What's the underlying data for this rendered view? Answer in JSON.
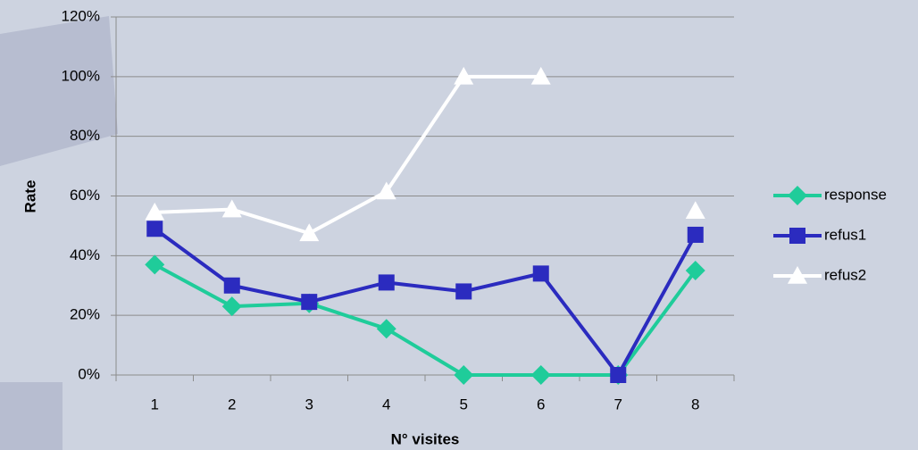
{
  "chart_data": {
    "type": "line",
    "xlabel": "N° visites",
    "ylabel": "Rate",
    "categories": [
      "1",
      "2",
      "3",
      "4",
      "5",
      "6",
      "7",
      "8"
    ],
    "series": [
      {
        "name": "response",
        "color": "#1fcc9a",
        "marker": "diamond",
        "values": [
          37,
          23,
          24,
          15.5,
          0,
          0,
          0,
          35
        ]
      },
      {
        "name": "refus1",
        "color": "#2b2bbf",
        "marker": "square",
        "values": [
          49,
          30,
          24.5,
          31,
          28,
          34,
          0,
          47
        ]
      },
      {
        "name": "refus2",
        "color": "#ffffff",
        "marker": "triangle",
        "values": [
          54.5,
          55.5,
          47.5,
          61.5,
          100,
          100,
          null,
          55
        ]
      }
    ],
    "ylim": [
      0,
      120
    ],
    "yticks": [
      {
        "value": 0,
        "label": "0%"
      },
      {
        "value": 20,
        "label": "20%"
      },
      {
        "value": 40,
        "label": "40%"
      },
      {
        "value": 60,
        "label": "60%"
      },
      {
        "value": 80,
        "label": "80%"
      },
      {
        "value": 100,
        "label": "100%"
      },
      {
        "value": 120,
        "label": "120%"
      }
    ],
    "grid": true,
    "legend": "right"
  }
}
